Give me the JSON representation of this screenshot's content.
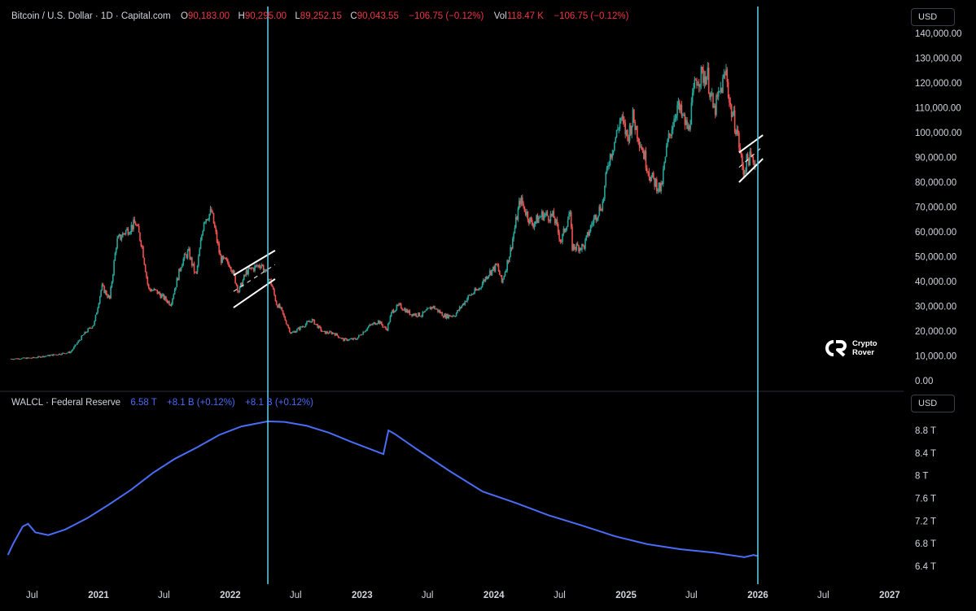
{
  "header": {
    "symbol": "Bitcoin / U.S. Dollar · 1D · Capital.com",
    "o_label": "O",
    "o_value": "90,183.00",
    "h_label": "H",
    "h_value": "90,295.00",
    "l_label": "L",
    "l_value": "89,252.15",
    "c_label": "C",
    "c_value": "90,043.55",
    "change": "−106.75 (−0.12%)",
    "vol_label": "Vol",
    "vol_value": "118.47 K",
    "vol_change": "−106.75 (−0.12%)"
  },
  "lower_header": {
    "symbol": "WALCL · Federal Reserve",
    "value": "6.58 T",
    "change1": "+8.1 B (+0.12%)",
    "change2": "+8.1 B (+0.12%)"
  },
  "currency_top": "USD",
  "currency_bottom": "USD",
  "watermark": {
    "line1": "Crypto",
    "line2": "Rover"
  },
  "colors": {
    "up": "#26a69a",
    "down": "#ef5350",
    "walcl": "#4a6cf7",
    "vline": "#5bc6e0",
    "red_text": "#f23645"
  },
  "chart_data": [
    {
      "type": "candlestick",
      "title": "Bitcoin / U.S. Dollar · 1D · Capital.com",
      "y_ticks": [
        "0.00",
        "10,000.00",
        "20,000.00",
        "30,000.00",
        "40,000.00",
        "50,000.00",
        "60,000.00",
        "70,000.00",
        "80,000.00",
        "90,000.00",
        "100,000.00",
        "110,000.00",
        "120,000.00",
        "130,000.00",
        "140,000.00"
      ],
      "ylim": [
        0,
        140000
      ],
      "x_ticks": [
        "Jul",
        "2021",
        "Jul",
        "2022",
        "Jul",
        "2023",
        "Jul",
        "2024",
        "Jul",
        "2025",
        "Jul",
        "2026",
        "Jul",
        "2027"
      ],
      "series": [
        {
          "name": "Bitcoin / U.S. Dollar",
          "x": [
            "2020-05-01",
            "2020-07-01",
            "2020-09-01",
            "2020-10-15",
            "2020-11-20",
            "2020-12-20",
            "2021-01-10",
            "2021-02-01",
            "2021-02-20",
            "2021-03-15",
            "2021-04-14",
            "2021-05-01",
            "2021-05-19",
            "2021-06-10",
            "2021-07-20",
            "2021-08-20",
            "2021-09-07",
            "2021-09-28",
            "2021-10-20",
            "2021-11-10",
            "2021-12-05",
            "2022-01-01",
            "2022-01-24",
            "2022-02-15",
            "2022-03-28",
            "2022-04-25",
            "2022-05-09",
            "2022-05-20",
            "2022-06-18",
            "2022-07-10",
            "2022-08-15",
            "2022-09-15",
            "2022-10-15",
            "2022-11-10",
            "2022-12-15",
            "2023-01-20",
            "2023-02-15",
            "2023-03-10",
            "2023-03-25",
            "2023-04-14",
            "2023-05-15",
            "2023-06-15",
            "2023-07-15",
            "2023-08-18",
            "2023-09-15",
            "2023-10-23",
            "2023-11-20",
            "2023-12-15",
            "2024-01-10",
            "2024-01-23",
            "2024-02-15",
            "2024-03-14",
            "2024-04-15",
            "2024-05-15",
            "2024-06-15",
            "2024-07-05",
            "2024-07-29",
            "2024-08-05",
            "2024-09-06",
            "2024-09-30",
            "2024-10-29",
            "2024-11-12",
            "2024-12-05",
            "2024-12-17",
            "2025-01-05",
            "2025-01-20",
            "2025-02-10",
            "2025-03-10",
            "2025-04-08",
            "2025-04-25",
            "2025-05-22",
            "2025-06-22",
            "2025-07-14",
            "2025-08-14",
            "2025-09-01",
            "2025-10-06",
            "2025-10-15",
            "2025-11-04",
            "2025-11-21",
            "2025-12-05",
            "2025-12-26"
          ],
          "close": [
            8800,
            9200,
            10500,
            11500,
            18500,
            23000,
            38000,
            33000,
            56000,
            60000,
            63500,
            55000,
            37000,
            36000,
            31000,
            48000,
            52000,
            42000,
            65000,
            68000,
            49000,
            47000,
            36000,
            44000,
            47000,
            39000,
            31000,
            29000,
            19000,
            21000,
            24500,
            19500,
            19200,
            16500,
            16800,
            22000,
            24000,
            20500,
            28000,
            30300,
            27000,
            26500,
            30000,
            26000,
            26500,
            34000,
            37000,
            43000,
            46500,
            39500,
            52000,
            73000,
            63000,
            67000,
            66000,
            56000,
            68000,
            54000,
            54000,
            64000,
            72000,
            88000,
            99000,
            106000,
            98000,
            106000,
            96000,
            82000,
            77000,
            95000,
            111000,
            101000,
            122000,
            123500,
            108000,
            125000,
            111000,
            101000,
            84000,
            90000,
            88000
          ]
        }
      ],
      "annotations": [
        "ascending channel 2022",
        "ascending channel 2025",
        "vertical line 2022-04",
        "vertical line 2026-01"
      ]
    },
    {
      "type": "line",
      "title": "WALCL · Federal Reserve",
      "y_ticks": [
        "6.4 T",
        "6.8 T",
        "7.2 T",
        "7.6 T",
        "8 T",
        "8.4 T",
        "8.8 T"
      ],
      "ylim": [
        6.3,
        9.1
      ],
      "x_ticks": [
        "Jul",
        "2021",
        "Jul",
        "2022",
        "Jul",
        "2023",
        "Jul",
        "2024",
        "Jul",
        "2025",
        "Jul",
        "2026",
        "Jul",
        "2027"
      ],
      "series": [
        {
          "name": "WALCL · Federal Reserve",
          "x": [
            "2020-04-25",
            "2020-05-10",
            "2020-06-05",
            "2020-06-20",
            "2020-07-10",
            "2020-08-15",
            "2020-10-01",
            "2020-12-01",
            "2021-02-01",
            "2021-04-01",
            "2021-06-01",
            "2021-08-01",
            "2021-10-01",
            "2021-12-01",
            "2022-02-01",
            "2022-04-15",
            "2022-06-01",
            "2022-08-01",
            "2022-10-01",
            "2022-12-01",
            "2023-03-01",
            "2023-03-15",
            "2023-04-01",
            "2023-06-01",
            "2023-09-01",
            "2023-12-01",
            "2024-03-01",
            "2024-06-01",
            "2024-09-01",
            "2024-12-01",
            "2025-03-01",
            "2025-06-01",
            "2025-09-01",
            "2025-11-25",
            "2025-12-20",
            "2026-01-01"
          ],
          "values": [
            6.6,
            6.8,
            7.1,
            7.15,
            7.0,
            6.95,
            7.05,
            7.25,
            7.5,
            7.75,
            8.05,
            8.3,
            8.5,
            8.72,
            8.87,
            8.96,
            8.95,
            8.88,
            8.76,
            8.6,
            8.38,
            8.8,
            8.74,
            8.47,
            8.08,
            7.72,
            7.52,
            7.3,
            7.12,
            6.93,
            6.79,
            6.7,
            6.64,
            6.56,
            6.6,
            6.58
          ]
        }
      ]
    }
  ]
}
